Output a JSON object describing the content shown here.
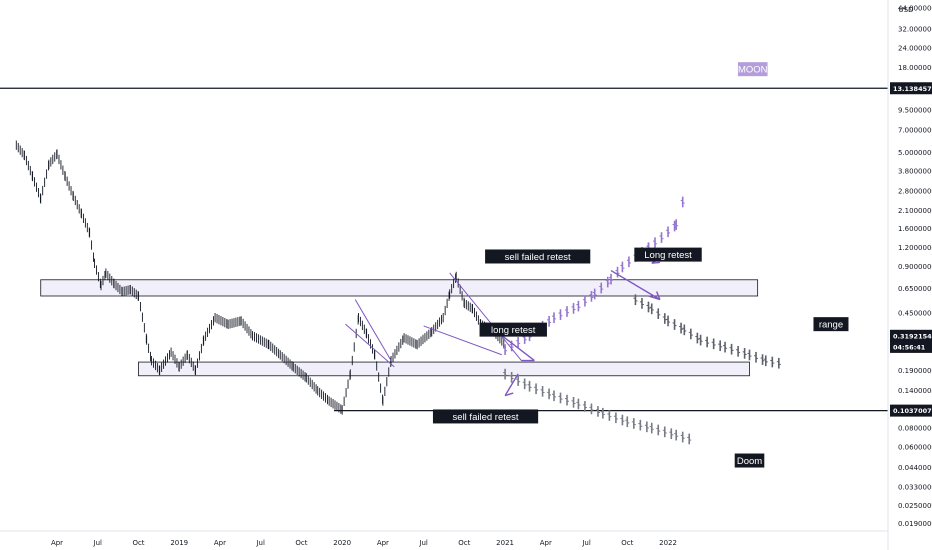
{
  "chart_data": {
    "type": "ohlc",
    "currency": "USD",
    "yscale": "log",
    "ylim": [
      0.017,
      48
    ],
    "y_ticks": [
      "44.00000000",
      "32.00000000",
      "24.00000000",
      "18.00000000",
      "9.5000000",
      "7.00000000",
      "5.00000000",
      "3.80000000",
      "2.80000000",
      "2.10000000",
      "1.60000000",
      "1.20000000",
      "0.90000000",
      "0.65000000",
      "0.45000000",
      "0.19000000",
      "0.14000000",
      "0.08000000",
      "0.06000000",
      "0.04400000",
      "0.03300000",
      "0.02500000",
      "0.01900000"
    ],
    "x_ticks": [
      "Apr",
      "Jul",
      "Oct",
      "2019",
      "Apr",
      "Jul",
      "Oct",
      "2020",
      "Apr",
      "Jul",
      "Oct",
      "2021",
      "Apr",
      "Jul",
      "Oct",
      "2022"
    ],
    "price_tags": [
      {
        "label": "13.13845765",
        "value": 13.14
      },
      {
        "label": "0.31921541",
        "value": 0.319
      },
      {
        "label": "04:56:41",
        "value": 0.27
      },
      {
        "label": "0.10370076",
        "value": 0.1037
      }
    ],
    "zones": [
      {
        "name": "resistance-zone",
        "x": [
          2018.15,
          2022.55
        ],
        "y": [
          0.58,
          0.74
        ]
      },
      {
        "name": "support-zone",
        "x": [
          2018.75,
          2022.5
        ],
        "y": [
          0.175,
          0.215
        ]
      }
    ],
    "hlines": [
      {
        "name": "top-line",
        "value": 13.14
      },
      {
        "name": "bottom-line",
        "value": 0.1037
      }
    ],
    "series": [
      {
        "name": "price",
        "color": "#131722",
        "points": [
          [
            2018.0,
            5.6
          ],
          [
            2018.05,
            4.8
          ],
          [
            2018.1,
            3.5
          ],
          [
            2018.15,
            2.5
          ],
          [
            2018.2,
            4.2
          ],
          [
            2018.25,
            4.9
          ],
          [
            2018.3,
            3.5
          ],
          [
            2018.35,
            2.6
          ],
          [
            2018.4,
            2.0
          ],
          [
            2018.45,
            1.5
          ],
          [
            2018.48,
            0.95
          ],
          [
            2018.52,
            0.68
          ],
          [
            2018.55,
            0.82
          ],
          [
            2018.6,
            0.7
          ],
          [
            2018.65,
            0.62
          ],
          [
            2018.7,
            0.64
          ],
          [
            2018.75,
            0.58
          ],
          [
            2018.8,
            0.3
          ],
          [
            2018.83,
            0.22
          ],
          [
            2018.88,
            0.19
          ],
          [
            2018.95,
            0.25
          ],
          [
            2019.0,
            0.2
          ],
          [
            2019.05,
            0.24
          ],
          [
            2019.1,
            0.19
          ],
          [
            2019.15,
            0.3
          ],
          [
            2019.22,
            0.42
          ],
          [
            2019.3,
            0.38
          ],
          [
            2019.38,
            0.4
          ],
          [
            2019.45,
            0.32
          ],
          [
            2019.55,
            0.28
          ],
          [
            2019.62,
            0.24
          ],
          [
            2019.7,
            0.2
          ],
          [
            2019.78,
            0.17
          ],
          [
            2019.85,
            0.14
          ],
          [
            2019.92,
            0.12
          ],
          [
            2020.0,
            0.105
          ],
          [
            2020.05,
            0.18
          ],
          [
            2020.1,
            0.42
          ],
          [
            2020.15,
            0.33
          ],
          [
            2020.2,
            0.24
          ],
          [
            2020.25,
            0.12
          ],
          [
            2020.3,
            0.22
          ],
          [
            2020.38,
            0.31
          ],
          [
            2020.46,
            0.28
          ],
          [
            2020.55,
            0.34
          ],
          [
            2020.62,
            0.42
          ],
          [
            2020.66,
            0.6
          ],
          [
            2020.7,
            0.78
          ],
          [
            2020.75,
            0.52
          ],
          [
            2020.8,
            0.48
          ],
          [
            2020.85,
            0.38
          ],
          [
            2020.92,
            0.35
          ],
          [
            2021.0,
            0.28
          ]
        ]
      },
      {
        "name": "bull-projection",
        "color": "#9575cd",
        "points": [
          [
            2021.0,
            0.26
          ],
          [
            2021.15,
            0.32
          ],
          [
            2021.3,
            0.42
          ],
          [
            2021.45,
            0.5
          ],
          [
            2021.55,
            0.6
          ],
          [
            2021.65,
            0.75
          ],
          [
            2021.72,
            0.9
          ],
          [
            2021.8,
            1.05
          ],
          [
            2021.88,
            1.2
          ],
          [
            2021.96,
            1.4
          ],
          [
            2022.05,
            1.7
          ],
          [
            2022.1,
            2.6
          ]
        ]
      },
      {
        "name": "bear-projection",
        "color": "#787b86",
        "points": [
          [
            2021.0,
            0.18
          ],
          [
            2021.15,
            0.15
          ],
          [
            2021.3,
            0.13
          ],
          [
            2021.45,
            0.115
          ],
          [
            2021.6,
            0.1
          ],
          [
            2021.75,
            0.088
          ],
          [
            2021.9,
            0.08
          ],
          [
            2022.05,
            0.072
          ],
          [
            2022.15,
            0.067
          ]
        ]
      },
      {
        "name": "range-projection",
        "color": "#5d606b",
        "points": [
          [
            2021.8,
            0.55
          ],
          [
            2021.9,
            0.48
          ],
          [
            2022.0,
            0.4
          ],
          [
            2022.1,
            0.35
          ],
          [
            2022.2,
            0.3
          ],
          [
            2022.35,
            0.27
          ],
          [
            2022.5,
            0.24
          ],
          [
            2022.6,
            0.22
          ],
          [
            2022.7,
            0.21
          ]
        ]
      }
    ],
    "annotations": [
      {
        "text": "MOON",
        "style": "moon",
        "x": 2022.52,
        "y": 17.5
      },
      {
        "text": "sell failed retest",
        "style": "note",
        "x": 2021.2,
        "y": 1.05
      },
      {
        "text": "Long retest",
        "style": "note",
        "x": 2022.0,
        "y": 1.08
      },
      {
        "text": "long retest",
        "style": "note",
        "x": 2021.05,
        "y": 0.35
      },
      {
        "text": "range",
        "style": "note",
        "x": 2023.0,
        "y": 0.38
      },
      {
        "text": "sell failed retest",
        "style": "note",
        "x": 2020.88,
        "y": 0.095
      },
      {
        "text": "Doom",
        "style": "note",
        "x": 2022.5,
        "y": 0.049
      }
    ]
  }
}
